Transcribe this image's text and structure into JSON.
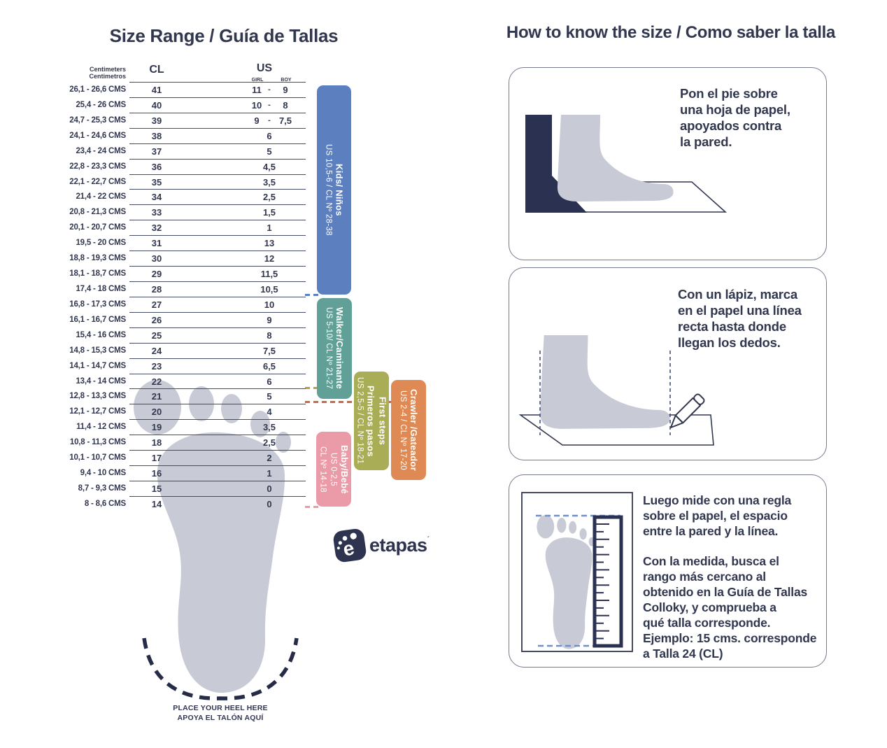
{
  "page": {
    "background": "#ffffff",
    "ink_color": "#31374f"
  },
  "left": {
    "title": "Size Range / Guía de Tallas",
    "table": {
      "header": {
        "cm1": "Centimeters",
        "cm2": "Centimetros",
        "cl": "CL",
        "us": "US",
        "girl": "GIRL",
        "boy": "BOY"
      },
      "rows": [
        {
          "cms": "26,1 - 26,6 CMS",
          "cl": "41",
          "girl": "11",
          "boy": "9"
        },
        {
          "cms": "25,4 - 26 CMS",
          "cl": "40",
          "girl": "10",
          "boy": "8"
        },
        {
          "cms": "24,7 - 25,3 CMS",
          "cl": "39",
          "girl": "9",
          "boy": "7,5"
        },
        {
          "cms": "24,1 - 24,6 CMS",
          "cl": "38",
          "us": "6"
        },
        {
          "cms": "23,4 - 24 CMS",
          "cl": "37",
          "us": "5"
        },
        {
          "cms": "22,8 - 23,3 CMS",
          "cl": "36",
          "us": "4,5"
        },
        {
          "cms": "22,1 - 22,7 CMS",
          "cl": "35",
          "us": "3,5"
        },
        {
          "cms": "21,4 - 22 CMS",
          "cl": "34",
          "us": "2,5"
        },
        {
          "cms": "20,8 - 21,3 CMS",
          "cl": "33",
          "us": "1,5"
        },
        {
          "cms": "20,1 - 20,7 CMS",
          "cl": "32",
          "us": "1"
        },
        {
          "cms": "19,5 - 20 CMS",
          "cl": "31",
          "us": "13"
        },
        {
          "cms": "18,8 - 19,3 CMS",
          "cl": "30",
          "us": "12"
        },
        {
          "cms": "18,1 - 18,7 CMS",
          "cl": "29",
          "us": "11,5"
        },
        {
          "cms": "17,4 - 18 CMS",
          "cl": "28",
          "us": "10,5"
        },
        {
          "cms": "16,8 - 17,3 CMS",
          "cl": "27",
          "us": "10"
        },
        {
          "cms": "16,1 - 16,7 CMS",
          "cl": "26",
          "us": "9"
        },
        {
          "cms": "15,4 - 16 CMS",
          "cl": "25",
          "us": "8"
        },
        {
          "cms": "14,8 - 15,3 CMS",
          "cl": "24",
          "us": "7,5"
        },
        {
          "cms": "14,1 - 14,7 CMS",
          "cl": "23",
          "us": "6,5"
        },
        {
          "cms": "13,4 - 14 CMS",
          "cl": "22",
          "us": "6"
        },
        {
          "cms": "12,8 - 13,3 CMS",
          "cl": "21",
          "us": "5"
        },
        {
          "cms": "12,1 - 12,7 CMS",
          "cl": "20",
          "us": "4"
        },
        {
          "cms": "11,4 - 12 CMS",
          "cl": "19",
          "us": "3,5"
        },
        {
          "cms": "10,8 - 11,3 CMS",
          "cl": "18",
          "us": "2,5"
        },
        {
          "cms": "10,1 - 10,7 CMS",
          "cl": "17",
          "us": "2"
        },
        {
          "cms": "9,4 - 10 CMS",
          "cl": "16",
          "us": "1"
        },
        {
          "cms": "8,7 - 9,3 CMS",
          "cl": "15",
          "us": "0"
        },
        {
          "cms": "8 - 8,6 CMS",
          "cl": "14",
          "us": "0"
        }
      ]
    },
    "bands": {
      "kids": {
        "label": "Kids/ Niños",
        "range": "US 10,5-6 / CL Nº 28-38",
        "color": "#5c7fc0"
      },
      "walker": {
        "label": "Walker/Caminante",
        "range": "US 5-10/ CL Nº 21-27",
        "color": "#61a096"
      },
      "first_steps": {
        "label_en": "First steps",
        "label_es": "Primeros pasos",
        "range": "US 2,5-5 / CL Nº 18-21",
        "color": "#a9ad55"
      },
      "crawler": {
        "label": "Crawler /Gateador",
        "range": "US 2-4 / CL Nº 17-20",
        "color": "#df8a54"
      },
      "baby": {
        "label": "Baby/Bebé",
        "range_us": "US 0-2,5",
        "range_cl": "CL Nº 14-18",
        "color": "#eb9ba7"
      }
    },
    "heel_note": {
      "en": "PLACE YOUR HEEL HERE",
      "es": "APOYA EL TALÓN AQUÍ"
    },
    "logo": {
      "mark_letter": "e",
      "text": "etapas",
      "tm": "´"
    }
  },
  "right": {
    "title": "How to know the size / Como saber la talla",
    "step1": {
      "text": "Pon el pie sobre\nuna hoja de papel,\napoyados contra\nla pared."
    },
    "step2": {
      "text": "Con un lápiz, marca\nen el papel una línea\nrecta hasta donde\nllegan los dedos."
    },
    "step3": {
      "para1": "Luego mide con una regla\nsobre el papel, el espacio\nentre la pared y la línea.",
      "para2": "Con la medida, busca el\nrango más cercano al\nobtenido en la Guía de Tallas\nColloky, y comprueba a\nqué talla corresponde.\nEjemplo:  15 cms. corresponde\na Talla 24 (CL)"
    }
  }
}
